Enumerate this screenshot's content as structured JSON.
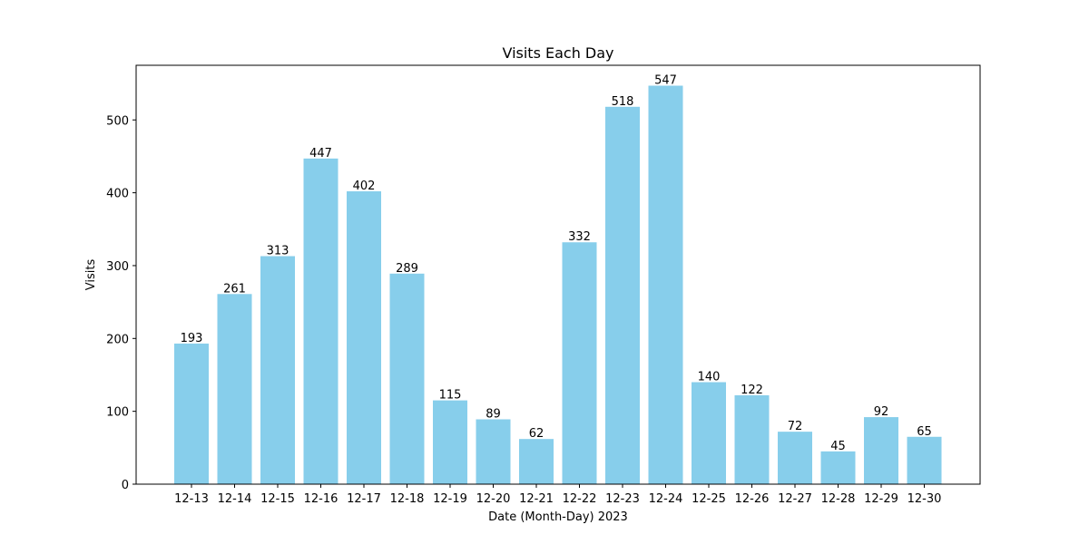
{
  "chart_data": {
    "type": "bar",
    "title": "Visits Each Day",
    "xlabel": "Date (Month-Day) 2023",
    "ylabel": "Visits",
    "categories": [
      "12-13",
      "12-14",
      "12-15",
      "12-16",
      "12-17",
      "12-18",
      "12-19",
      "12-20",
      "12-21",
      "12-22",
      "12-23",
      "12-24",
      "12-25",
      "12-26",
      "12-27",
      "12-28",
      "12-29",
      "12-30"
    ],
    "values": [
      193,
      261,
      313,
      447,
      402,
      289,
      115,
      89,
      62,
      332,
      518,
      547,
      140,
      122,
      72,
      45,
      92,
      65
    ],
    "ylim": [
      0,
      575
    ],
    "yticks": [
      0,
      100,
      200,
      300,
      400,
      500
    ],
    "bar_color": "#87CEEB",
    "grid": false,
    "legend": false
  }
}
